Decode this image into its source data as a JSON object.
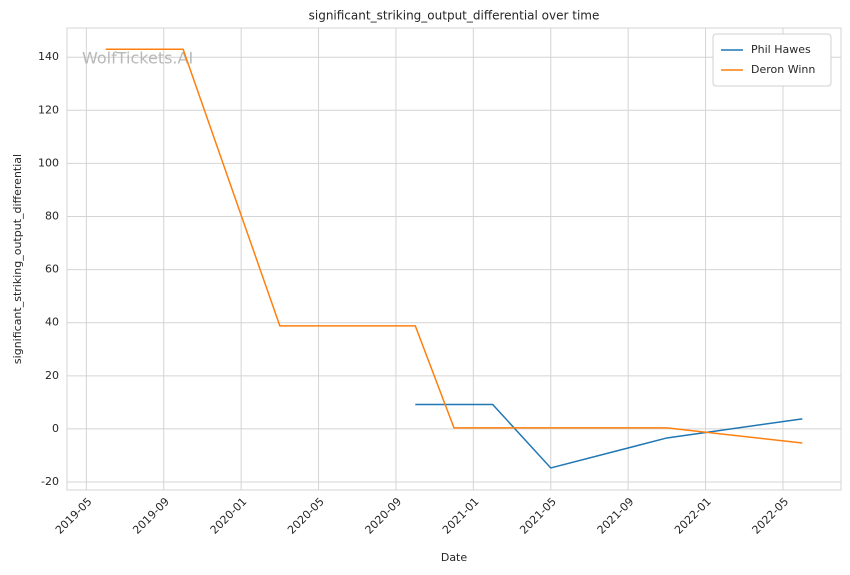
{
  "chart_data": {
    "type": "line",
    "title": "significant_striking_output_differential over time",
    "xlabel": "Date",
    "ylabel": "significant_striking_output_differential",
    "watermark": "WolfTickets.AI",
    "series": [
      {
        "name": "Phil Hawes",
        "color": "#1f77b4",
        "x": [
          "2020-10",
          "2021-02",
          "2021-05",
          "2021-11",
          "2022-06"
        ],
        "values": [
          9.2,
          9.2,
          -14.7,
          -3.4,
          3.8
        ]
      },
      {
        "name": "Deron Winn",
        "color": "#ff7f0e",
        "x": [
          "2019-06",
          "2019-10",
          "2020-03",
          "2020-10",
          "2020-12",
          "2021-11",
          "2022-06"
        ],
        "values": [
          143,
          143,
          38.8,
          38.8,
          0.4,
          0.4,
          -5.3
        ]
      }
    ],
    "xlim": [
      "2019-04",
      "2022-08"
    ],
    "xticks": [
      "2019-05",
      "2019-09",
      "2020-01",
      "2020-05",
      "2020-09",
      "2021-01",
      "2021-05",
      "2021-09",
      "2022-01",
      "2022-05"
    ],
    "ylim": [
      -23,
      151
    ],
    "yticks": [
      -20,
      0,
      20,
      40,
      60,
      80,
      100,
      120,
      140
    ],
    "grid": true,
    "legend": "upper right"
  }
}
